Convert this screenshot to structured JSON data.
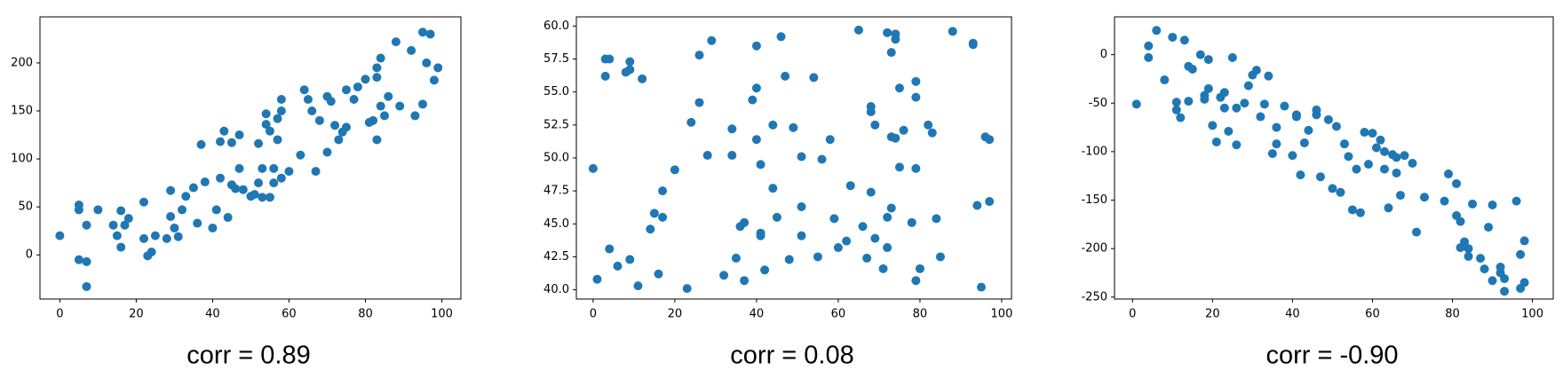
{
  "chart_data": [
    {
      "type": "scatter",
      "color": "#1f77b4",
      "caption": "corr = 0.89",
      "x": [
        0,
        5,
        5,
        5,
        7,
        7,
        7,
        10,
        14,
        15,
        16,
        16,
        17,
        18,
        22,
        22,
        23,
        24,
        25,
        28,
        29,
        29,
        30,
        31,
        32,
        33,
        35,
        36,
        37,
        38,
        40,
        41,
        42,
        42,
        43,
        44,
        45,
        45,
        46,
        47,
        47,
        48,
        50,
        51,
        52,
        52,
        53,
        53,
        54,
        54,
        55,
        55,
        56,
        56,
        57,
        57,
        58,
        58,
        58,
        60,
        63,
        64,
        65,
        66,
        67,
        68,
        70,
        70,
        71,
        72,
        73,
        74,
        75,
        75,
        77,
        78,
        80,
        81,
        82,
        83,
        83,
        83,
        84,
        84,
        85,
        86,
        88,
        89,
        92,
        93,
        95,
        95,
        96,
        97,
        98,
        99
      ],
      "values": [
        20,
        47,
        52,
        -5,
        -7,
        31,
        -33,
        47,
        31,
        20,
        8,
        46,
        31,
        38,
        55,
        17,
        -1,
        3,
        20,
        17,
        40,
        67,
        28,
        19,
        47,
        61,
        70,
        33,
        115,
        76,
        28,
        47,
        118,
        80,
        129,
        39,
        117,
        73,
        69,
        125,
        90,
        68,
        61,
        63,
        75,
        116,
        90,
        60,
        147,
        136,
        129,
        60,
        90,
        75,
        120,
        142,
        162,
        150,
        80,
        87,
        104,
        172,
        162,
        150,
        87,
        140,
        165,
        107,
        160,
        135,
        120,
        128,
        172,
        133,
        162,
        175,
        183,
        138,
        140,
        195,
        185,
        120,
        205,
        155,
        145,
        165,
        222,
        155,
        213,
        145,
        157,
        232,
        200,
        230,
        182,
        195
      ],
      "xlim": [
        -5.2,
        105
      ],
      "ylim": [
        -46,
        248
      ],
      "xticks": [
        0,
        20,
        40,
        60,
        80,
        100
      ],
      "yticks": [
        0,
        50,
        100,
        150,
        200
      ]
    },
    {
      "type": "scatter",
      "color": "#1f77b4",
      "caption": "corr = 0.08",
      "x": [
        0,
        1,
        3,
        3,
        4,
        4,
        6,
        8,
        9,
        9,
        9,
        11,
        12,
        14,
        15,
        16,
        17,
        17,
        20,
        23,
        24,
        26,
        26,
        28,
        29,
        32,
        34,
        34,
        35,
        36,
        37,
        37,
        39,
        40,
        40,
        40,
        41,
        41,
        41,
        42,
        44,
        44,
        45,
        46,
        47,
        48,
        49,
        51,
        51,
        51,
        54,
        55,
        56,
        58,
        59,
        60,
        62,
        63,
        65,
        66,
        67,
        68,
        68,
        68,
        69,
        69,
        71,
        72,
        72,
        72,
        73,
        73,
        73,
        74,
        74,
        74,
        75,
        75,
        76,
        78,
        79,
        79,
        79,
        79,
        80,
        82,
        83,
        84,
        85,
        88,
        93,
        93,
        94,
        95,
        96,
        97,
        97
      ],
      "values": [
        49.2,
        40.8,
        57.5,
        56.2,
        57.5,
        43.1,
        41.8,
        56.5,
        56.7,
        57.3,
        42.3,
        40.3,
        56,
        44.6,
        45.8,
        41.2,
        47.5,
        45.5,
        49.1,
        40.1,
        52.7,
        57.8,
        54.2,
        50.2,
        58.9,
        41.1,
        52.2,
        50.2,
        42.4,
        44.8,
        45.1,
        40.7,
        54.4,
        58.5,
        55.3,
        51.4,
        44.3,
        44.1,
        49.5,
        41.5,
        47.7,
        52.5,
        45.5,
        59.2,
        56.2,
        42.3,
        52.3,
        44.1,
        50.1,
        46.3,
        56.1,
        42.5,
        49.9,
        51.4,
        45.4,
        43.2,
        43.7,
        47.9,
        59.7,
        44.8,
        42.4,
        53.5,
        53.9,
        47.4,
        43.9,
        52.5,
        41.6,
        59.5,
        43.2,
        45.5,
        58,
        51.6,
        46.2,
        59.4,
        59,
        51.5,
        55.3,
        49.3,
        52.1,
        45.1,
        54.6,
        55.8,
        49.2,
        40.7,
        41.6,
        52.5,
        51.9,
        45.4,
        42.5,
        59.6,
        58.6,
        58.7,
        46.4,
        40.2,
        51.6,
        51.4,
        46.7
      ],
      "xlim": [
        -4.1,
        102.4
      ],
      "ylim": [
        39.3,
        60.7
      ],
      "xticks": [
        0,
        20,
        40,
        60,
        80,
        100
      ],
      "yticks": [
        {
          "value": 40,
          "label": "40.0"
        },
        42.5,
        {
          "value": 45,
          "label": "45.0"
        },
        47.5,
        {
          "value": 50,
          "label": "50.0"
        },
        52.5,
        {
          "value": 55,
          "label": "55.0"
        },
        57.5,
        {
          "value": 60,
          "label": "60.0"
        }
      ]
    },
    {
      "type": "scatter",
      "color": "#1f77b4",
      "caption": "corr = -0.90",
      "x": [
        1,
        4,
        4,
        6,
        8,
        10,
        11,
        11,
        12,
        13,
        14,
        14,
        15,
        17,
        18,
        18,
        19,
        19,
        20,
        21,
        22,
        23,
        23,
        24,
        25,
        26,
        26,
        28,
        29,
        30,
        31,
        32,
        33,
        34,
        35,
        36,
        36,
        38,
        40,
        41,
        41,
        42,
        43,
        44,
        46,
        46,
        47,
        49,
        50,
        51,
        52,
        53,
        54,
        55,
        56,
        57,
        58,
        59,
        60,
        61,
        62,
        63,
        63,
        64,
        65,
        66,
        66,
        67,
        68,
        70,
        71,
        73,
        78,
        79,
        81,
        81,
        82,
        82,
        83,
        84,
        84,
        85,
        87,
        88,
        89,
        90,
        90,
        92,
        92,
        93,
        93,
        96,
        97,
        97,
        98,
        98
      ],
      "values": [
        -51,
        9,
        -3,
        25,
        -26,
        18,
        -49,
        -57,
        -65,
        15,
        -12,
        -48,
        -15,
        0,
        -42,
        -46,
        -5,
        -35,
        -73,
        -90,
        -44,
        -55,
        -39,
        -79,
        -3,
        -55,
        -93,
        -50,
        -32,
        -21,
        -16,
        -64,
        -51,
        -22,
        -102,
        -75,
        -92,
        -53,
        -104,
        -64,
        -62,
        -124,
        -91,
        -78,
        -57,
        -62,
        -126,
        -67,
        -138,
        -74,
        -142,
        -92,
        -105,
        -160,
        -118,
        -163,
        -80,
        -113,
        -81,
        -96,
        -88,
        -118,
        -100,
        -158,
        -103,
        -106,
        -122,
        -145,
        -104,
        -112,
        -183,
        -147,
        -151,
        -123,
        -166,
        -133,
        -199,
        -172,
        -193,
        -200,
        -208,
        -154,
        -210,
        -221,
        -178,
        -233,
        -155,
        -225,
        -219,
        -231,
        -244,
        -151,
        -206,
        -241,
        -192,
        -235
      ],
      "xlim": [
        -4.5,
        105.2
      ],
      "ylim": [
        -252,
        39
      ],
      "xticks": [
        0,
        20,
        40,
        60,
        80,
        100
      ],
      "yticks": [
        -250,
        -200,
        -150,
        -100,
        -50,
        0
      ]
    }
  ]
}
